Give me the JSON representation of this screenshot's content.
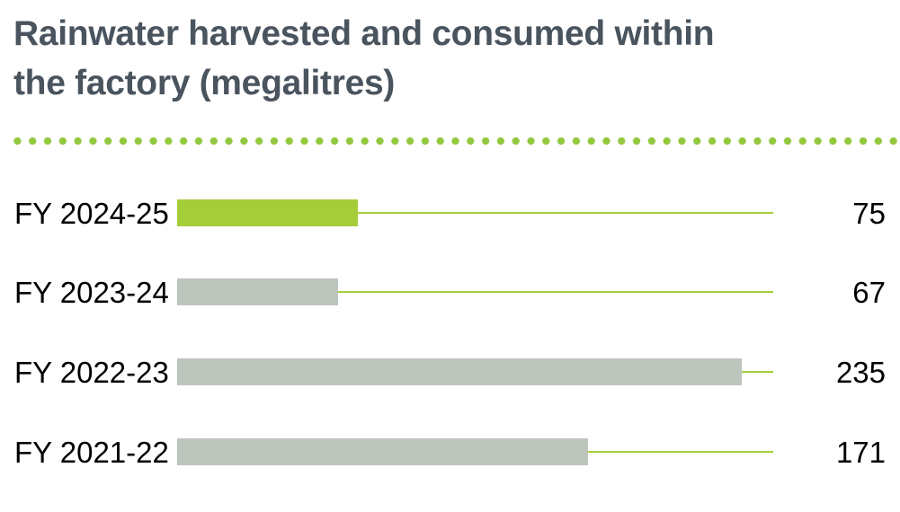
{
  "title": {
    "line1": "Rainwater harvested and consumed within",
    "line2": "the factory (megalitres)"
  },
  "colors": {
    "background": "#ffffff",
    "title_text": "#4a545e",
    "label_text": "#000000",
    "value_text": "#000000",
    "bar_green": "#a5cd39",
    "bar_gray": "#bdc6bc",
    "axis_line_green": "#a6ce39",
    "dot_green": "#93c83e"
  },
  "chart_data": {
    "type": "bar",
    "orientation": "horizontal",
    "title": "Rainwater harvested and consumed within the factory (megalitres)",
    "unit": "megalitres",
    "categories": [
      "FY 2024-25",
      "FY 2023-24",
      "FY 2022-23",
      "FY 2021-22"
    ],
    "values": [
      75,
      67,
      235,
      171
    ],
    "data_labels": [
      "75",
      "67",
      "235",
      "171"
    ],
    "highlighted_category": "FY 2024-25",
    "xlim": [
      0,
      248
    ],
    "grid": false,
    "legend": false,
    "separator_style": "green-dotted-line"
  }
}
